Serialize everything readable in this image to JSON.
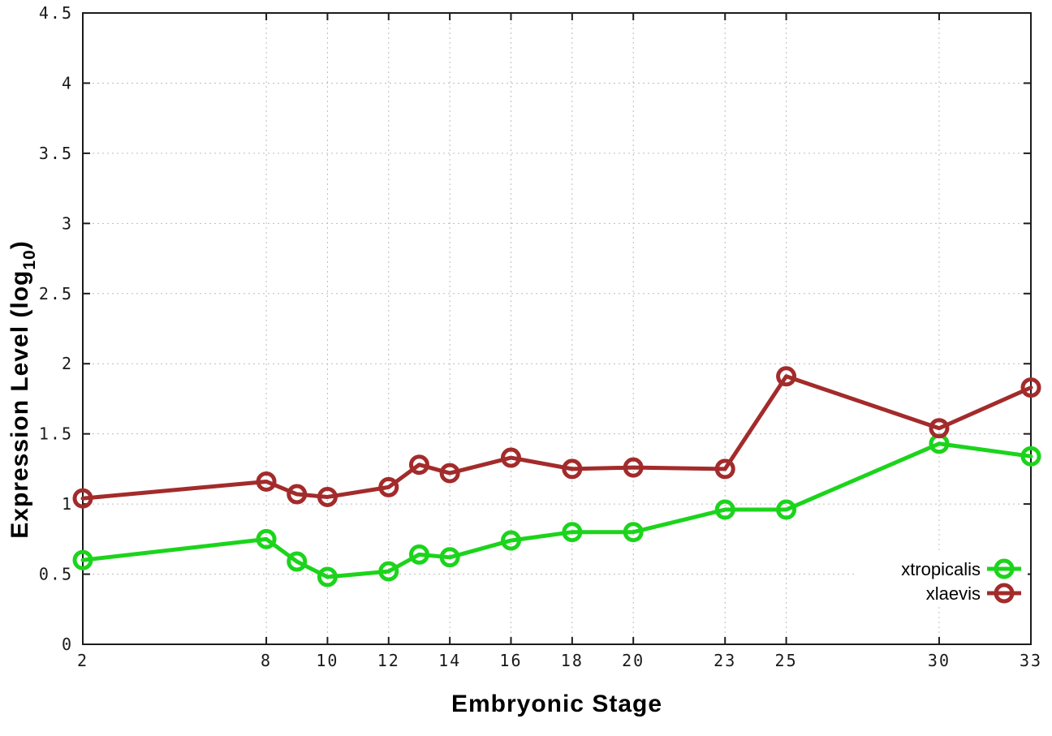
{
  "chart_data": {
    "type": "line",
    "title": "",
    "xlabel": "Embryonic Stage",
    "ylabel": {
      "main": "Expression Level (log",
      "sub": "10",
      "end": ")"
    },
    "x": [
      2,
      8,
      9,
      10,
      12,
      13,
      14,
      16,
      18,
      20,
      23,
      25,
      30,
      33
    ],
    "xtick_values": [
      2,
      8,
      10,
      12,
      14,
      16,
      18,
      20,
      23,
      25,
      30,
      33
    ],
    "xtick_labels": [
      "2",
      "8",
      "10",
      "12",
      "14",
      "16",
      "18",
      "20",
      "23",
      "25",
      "30",
      "33"
    ],
    "ytick_values": [
      0,
      0.5,
      1,
      1.5,
      2,
      2.5,
      3,
      3.5,
      4,
      4.5
    ],
    "ytick_labels": [
      "0",
      "0.5",
      "1",
      "1.5",
      "2",
      "2.5",
      "3",
      "3.5",
      "4",
      "4.5"
    ],
    "xlim": [
      2,
      33
    ],
    "ylim": [
      0,
      4.5
    ],
    "grid": true,
    "legend_position": "inside-right-middle",
    "series": [
      {
        "name": "xtropicalis",
        "color": "#1bd41b",
        "marker": "open-circle",
        "values": [
          0.6,
          0.75,
          0.59,
          0.48,
          0.52,
          0.64,
          0.62,
          0.74,
          0.8,
          0.8,
          0.96,
          0.96,
          1.43,
          1.34
        ]
      },
      {
        "name": "xlaevis",
        "color": "#a32b2b",
        "marker": "open-circle",
        "values": [
          1.04,
          1.16,
          1.07,
          1.05,
          1.12,
          1.28,
          1.22,
          1.33,
          1.25,
          1.26,
          1.25,
          1.91,
          1.54,
          1.83
        ]
      }
    ]
  },
  "style_colors": {
    "background": "#ffffff",
    "grid": "#bcbcbc",
    "border": "#1c1c1c",
    "text": "#000000"
  }
}
